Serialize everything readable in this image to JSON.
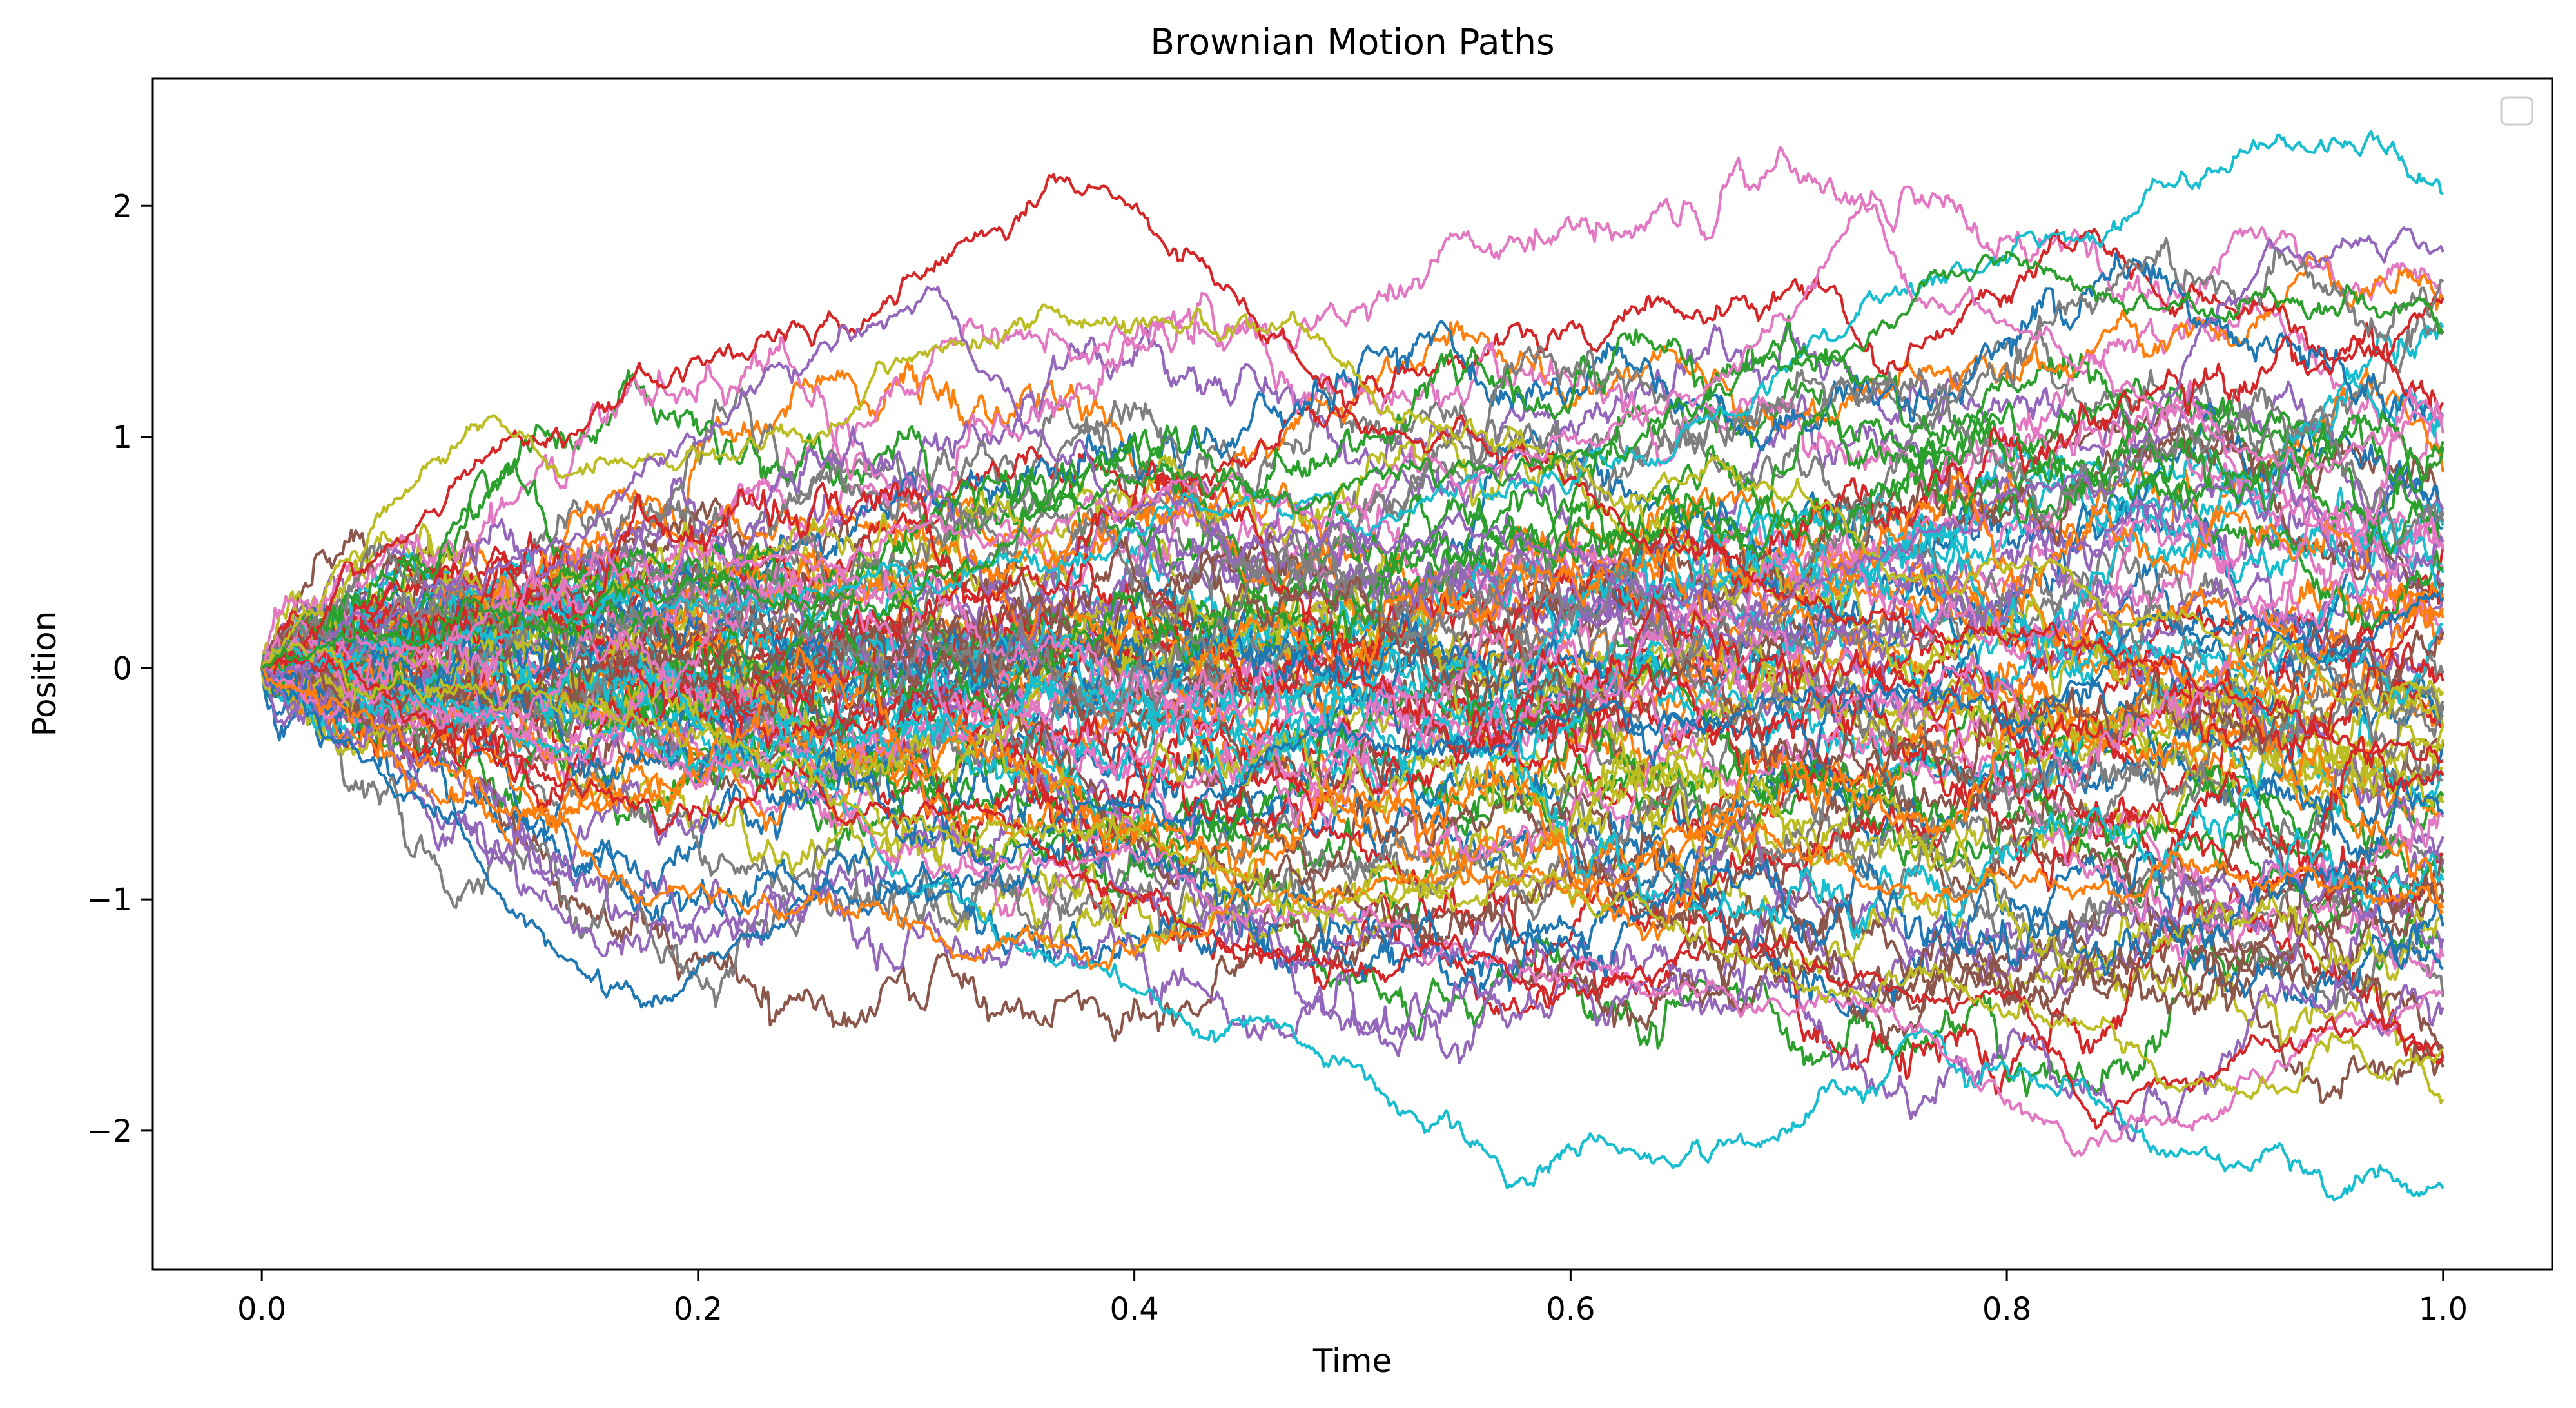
{
  "chart_data": {
    "type": "line",
    "title": "Brownian Motion Paths",
    "xlabel": "Time",
    "ylabel": "Position",
    "xlim": [
      -0.05,
      1.05
    ],
    "ylim": [
      -2.6,
      2.55
    ],
    "x_ticks": [
      0.0,
      0.2,
      0.4,
      0.6,
      0.8,
      1.0
    ],
    "x_tick_labels": [
      "0.0",
      "0.2",
      "0.4",
      "0.6",
      "0.8",
      "1.0"
    ],
    "y_ticks": [
      -2,
      -1,
      0,
      1,
      2
    ],
    "y_tick_labels": [
      "−2",
      "−1",
      "0",
      "1",
      "2"
    ],
    "grid": false,
    "legend": {
      "placement": "upper-right",
      "entries": []
    },
    "path_count": 100,
    "steps_per_path": 1000,
    "x": {
      "start": 0.0,
      "end": 1.0
    },
    "color_cycle": [
      "#1f77b4",
      "#ff7f0e",
      "#2ca02c",
      "#d62728",
      "#9467bd",
      "#8c564b",
      "#e377c2",
      "#7f7f7f",
      "#bcbd22",
      "#17becf"
    ],
    "highlighted_paths": [
      {
        "color": "#17becf",
        "anchors": [
          [
            0,
            0
          ],
          [
            0.2,
            -0.4
          ],
          [
            0.35,
            -1.2
          ],
          [
            0.45,
            -1.55
          ],
          [
            0.55,
            -2.0
          ],
          [
            0.65,
            -2.15
          ],
          [
            0.75,
            -1.65
          ],
          [
            0.85,
            -1.9
          ],
          [
            0.95,
            -2.3
          ],
          [
            1.0,
            -2.25
          ]
        ]
      },
      {
        "color": "#1f77b4",
        "anchors": [
          [
            0,
            0
          ],
          [
            0.08,
            -0.6
          ],
          [
            0.13,
            -1.2
          ],
          [
            0.175,
            -1.45
          ],
          [
            0.22,
            -1.15
          ],
          [
            0.3,
            -0.9
          ],
          [
            0.4,
            -0.6
          ],
          [
            0.55,
            -0.3
          ],
          [
            0.75,
            -0.1
          ],
          [
            1.0,
            0.3
          ]
        ]
      },
      {
        "color": "#d62728",
        "anchors": [
          [
            0,
            0
          ],
          [
            0.1,
            0.9
          ],
          [
            0.2,
            1.35
          ],
          [
            0.3,
            1.7
          ],
          [
            0.4,
            2.0
          ],
          [
            0.45,
            1.6
          ],
          [
            0.5,
            1.1
          ],
          [
            0.65,
            0.5
          ],
          [
            0.8,
            0.1
          ],
          [
            1.0,
            -0.4
          ]
        ]
      },
      {
        "color": "#17becf",
        "anchors": [
          [
            0,
            0
          ],
          [
            0.2,
            0.3
          ],
          [
            0.4,
            0.6
          ],
          [
            0.55,
            0.8
          ],
          [
            0.7,
            1.3
          ],
          [
            0.85,
            1.9
          ],
          [
            0.92,
            2.25
          ],
          [
            0.98,
            2.2
          ],
          [
            1.0,
            2.05
          ]
        ]
      },
      {
        "color": "#e377c2",
        "anchors": [
          [
            0,
            0
          ],
          [
            0.2,
            -0.5
          ],
          [
            0.4,
            -0.8
          ],
          [
            0.6,
            -1.3
          ],
          [
            0.7,
            -1.5
          ],
          [
            0.78,
            -1.7
          ],
          [
            0.83,
            -2.1
          ],
          [
            0.9,
            -1.9
          ],
          [
            1.0,
            -1.4
          ]
        ]
      },
      {
        "color": "#bcbd22",
        "anchors": [
          [
            0,
            0
          ],
          [
            0.1,
            1.05
          ],
          [
            0.2,
            0.9
          ],
          [
            0.3,
            1.35
          ],
          [
            0.43,
            1.55
          ],
          [
            0.55,
            1.0
          ],
          [
            0.75,
            0.4
          ],
          [
            0.9,
            0.1
          ],
          [
            1.0,
            -0.1
          ]
        ]
      },
      {
        "color": "#9467bd",
        "anchors": [
          [
            0,
            0
          ],
          [
            0.15,
            0.6
          ],
          [
            0.25,
            1.3
          ],
          [
            0.31,
            1.65
          ],
          [
            0.35,
            1.05
          ],
          [
            0.5,
            0.6
          ],
          [
            0.7,
            0.3
          ],
          [
            0.85,
            0.8
          ],
          [
            0.92,
            1.85
          ],
          [
            1.0,
            1.8
          ]
        ]
      },
      {
        "color": "#e377c2",
        "anchors": [
          [
            0,
            0
          ],
          [
            0.2,
            0.5
          ],
          [
            0.4,
            0.7
          ],
          [
            0.6,
            1.0
          ],
          [
            0.7,
            1.5
          ],
          [
            0.74,
            2.0
          ],
          [
            0.76,
            1.6
          ],
          [
            0.85,
            1.2
          ],
          [
            1.0,
            1.1
          ]
        ]
      },
      {
        "color": "#d62728",
        "anchors": [
          [
            0,
            0
          ],
          [
            0.2,
            -0.6
          ],
          [
            0.4,
            -1.0
          ],
          [
            0.5,
            -1.3
          ],
          [
            0.6,
            -1.35
          ],
          [
            0.7,
            -1.2
          ],
          [
            0.8,
            -1.4
          ],
          [
            0.84,
            -1.95
          ],
          [
            0.93,
            -1.6
          ],
          [
            1.0,
            -1.7
          ]
        ]
      },
      {
        "color": "#ff7f0e",
        "anchors": [
          [
            0,
            0
          ],
          [
            0.1,
            -0.5
          ],
          [
            0.2,
            -0.95
          ],
          [
            0.3,
            -1.1
          ],
          [
            0.38,
            -1.3
          ],
          [
            0.5,
            -1.0
          ],
          [
            0.65,
            -0.7
          ],
          [
            0.8,
            -0.9
          ],
          [
            1.0,
            -1.05
          ]
        ]
      },
      {
        "color": "#bcbd22",
        "anchors": [
          [
            0,
            0
          ],
          [
            0.2,
            -0.3
          ],
          [
            0.4,
            -0.7
          ],
          [
            0.6,
            -1.0
          ],
          [
            0.7,
            -1.3
          ],
          [
            0.8,
            -1.5
          ],
          [
            0.9,
            -1.8
          ],
          [
            1.0,
            -1.65
          ]
        ]
      },
      {
        "color": "#2ca02c",
        "anchors": [
          [
            0,
            0
          ],
          [
            0.2,
            0.4
          ],
          [
            0.4,
            0.8
          ],
          [
            0.6,
            0.9
          ],
          [
            0.7,
            1.3
          ],
          [
            0.8,
            1.8
          ],
          [
            0.9,
            1.5
          ],
          [
            1.0,
            1.45
          ]
        ]
      }
    ]
  }
}
